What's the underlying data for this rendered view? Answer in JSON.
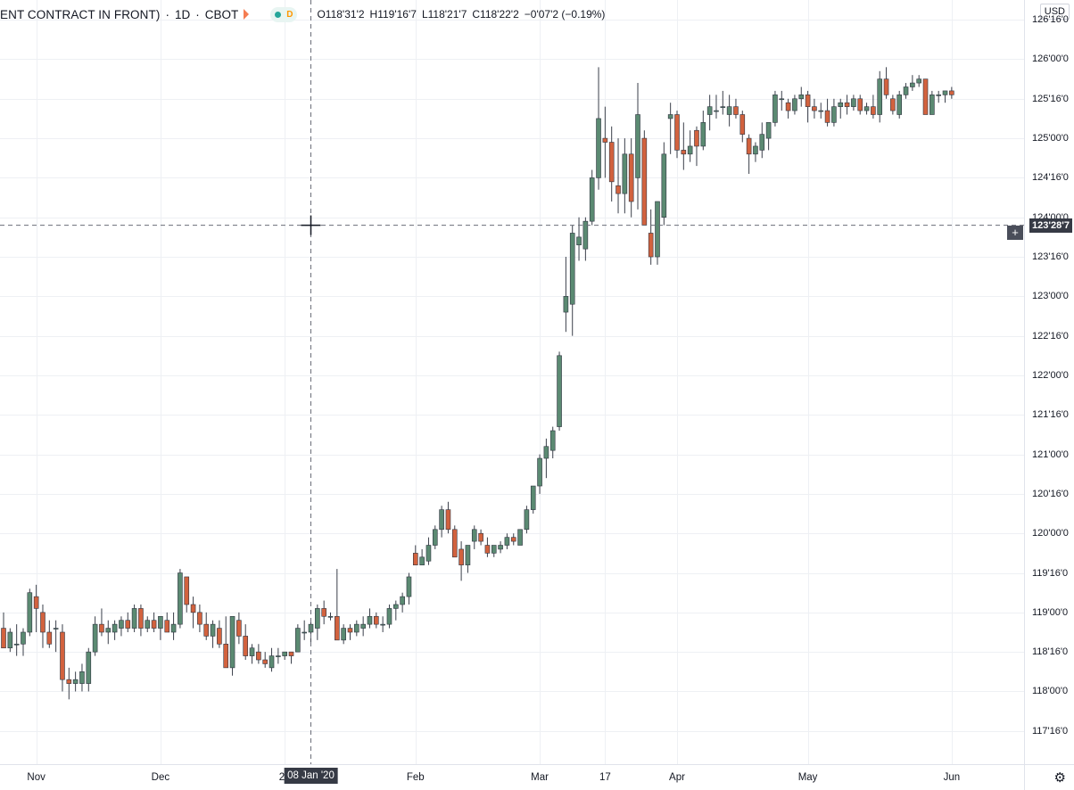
{
  "header": {
    "symbol": "ENT CONTRACT IN FRONT)",
    "interval": "1D",
    "exchange": "CBOT",
    "ohlc": {
      "open": "O118'31'2",
      "high": "H119'16'7",
      "low": "L118'21'7",
      "close": "C118'22'2",
      "change": "−0'07'2 (−0.19%)"
    },
    "currency": "USD",
    "status_letter": "D"
  },
  "colors": {
    "up": "#5b8a72",
    "down": "#d2623e",
    "grid": "#eef0f4",
    "axis_text": "#131722"
  },
  "icons": [
    "flag-icon",
    "live-dot-icon",
    "plus-icon",
    "gear-icon",
    "crosshair-icon"
  ],
  "crosshair": {
    "price_label": "123'28'7",
    "date_label": "08 Jan '20",
    "price": 123.9,
    "date_index": 47
  },
  "chart_data": {
    "type": "candlestick",
    "title": "",
    "y_ticks": [
      "126'16'0",
      "126'00'0",
      "125'16'0",
      "125'00'0",
      "124'16'0",
      "124'00'0",
      "123'16'0",
      "123'00'0",
      "122'16'0",
      "122'00'0",
      "121'16'0",
      "121'00'0",
      "120'16'0",
      "120'00'0",
      "119'16'0",
      "119'00'0",
      "118'16'0",
      "118'00'0",
      "117'16'0"
    ],
    "y_tick_values": [
      126.5,
      126.0,
      125.5,
      125.0,
      124.5,
      124.0,
      123.5,
      123.0,
      122.5,
      122.0,
      121.5,
      121.0,
      120.5,
      120.0,
      119.5,
      119.0,
      118.5,
      118.0,
      117.5
    ],
    "ylim": [
      117.08,
      126.75
    ],
    "x_labels": [
      {
        "label": "Nov",
        "index": 5
      },
      {
        "label": "Dec",
        "index": 24
      },
      {
        "label": "20",
        "index": 43
      },
      {
        "label": "Feb",
        "index": 63
      },
      {
        "label": "Mar",
        "index": 82
      },
      {
        "label": "17",
        "index": 92
      },
      {
        "label": "Apr",
        "index": 103
      },
      {
        "label": "May",
        "index": 123
      },
      {
        "label": "Jun",
        "index": 145
      }
    ],
    "ohlc": [
      [
        118.8,
        119.0,
        118.55,
        118.55
      ],
      [
        118.55,
        118.8,
        118.5,
        118.75
      ],
      [
        118.6,
        118.85,
        118.45,
        118.6
      ],
      [
        118.6,
        118.8,
        118.45,
        118.75
      ],
      [
        118.75,
        119.3,
        118.7,
        119.25
      ],
      [
        119.2,
        119.35,
        118.75,
        119.05
      ],
      [
        119.0,
        119.1,
        118.55,
        118.75
      ],
      [
        118.75,
        118.9,
        118.55,
        118.6
      ],
      [
        118.8,
        118.9,
        118.5,
        118.8
      ],
      [
        118.75,
        118.85,
        118.0,
        118.15
      ],
      [
        118.15,
        118.3,
        117.9,
        118.1
      ],
      [
        118.1,
        118.25,
        118.0,
        118.15
      ],
      [
        118.1,
        118.35,
        118.0,
        118.25
      ],
      [
        118.1,
        118.55,
        118.0,
        118.5
      ],
      [
        118.5,
        118.95,
        118.45,
        118.85
      ],
      [
        118.85,
        119.05,
        118.7,
        118.75
      ],
      [
        118.75,
        118.9,
        118.6,
        118.8
      ],
      [
        118.75,
        118.9,
        118.65,
        118.85
      ],
      [
        118.8,
        118.95,
        118.7,
        118.9
      ],
      [
        118.9,
        119.0,
        118.75,
        118.8
      ],
      [
        118.8,
        119.1,
        118.75,
        119.05
      ],
      [
        119.05,
        119.1,
        118.7,
        118.8
      ],
      [
        118.8,
        118.95,
        118.75,
        118.9
      ],
      [
        118.9,
        119.0,
        118.75,
        118.8
      ],
      [
        118.8,
        118.95,
        118.65,
        118.95
      ],
      [
        118.9,
        119.0,
        118.75,
        118.75
      ],
      [
        118.75,
        119.0,
        118.65,
        118.85
      ],
      [
        118.85,
        119.55,
        118.8,
        119.5
      ],
      [
        119.45,
        119.4,
        119.0,
        119.1
      ],
      [
        119.1,
        119.2,
        118.8,
        119.0
      ],
      [
        119.0,
        119.1,
        118.75,
        118.85
      ],
      [
        118.85,
        119.0,
        118.65,
        118.7
      ],
      [
        118.7,
        118.9,
        118.55,
        118.85
      ],
      [
        118.8,
        118.9,
        118.55,
        118.6
      ],
      [
        118.6,
        118.95,
        118.3,
        118.3
      ],
      [
        118.3,
        118.95,
        118.2,
        118.95
      ],
      [
        118.9,
        119.0,
        118.6,
        118.7
      ],
      [
        118.7,
        118.85,
        118.4,
        118.45
      ],
      [
        118.45,
        118.6,
        118.35,
        118.55
      ],
      [
        118.5,
        118.6,
        118.35,
        118.4
      ],
      [
        118.4,
        118.5,
        118.3,
        118.35
      ],
      [
        118.3,
        118.55,
        118.25,
        118.45
      ],
      [
        118.45,
        118.55,
        118.35,
        118.45
      ],
      [
        118.45,
        118.5,
        118.4,
        118.5
      ],
      [
        118.5,
        118.5,
        118.35,
        118.45
      ],
      [
        118.5,
        118.85,
        118.5,
        118.8
      ],
      [
        118.75,
        118.9,
        118.65,
        118.75
      ],
      [
        118.75,
        118.9,
        118.6,
        118.85
      ],
      [
        118.8,
        119.1,
        118.65,
        119.05
      ],
      [
        119.05,
        119.15,
        118.85,
        118.95
      ],
      [
        118.95,
        119.0,
        118.9,
        118.95
      ],
      [
        118.95,
        119.55,
        118.65,
        118.65
      ],
      [
        118.65,
        118.85,
        118.6,
        118.8
      ],
      [
        118.8,
        118.85,
        118.65,
        118.75
      ],
      [
        118.75,
        118.9,
        118.7,
        118.85
      ],
      [
        118.8,
        118.95,
        118.7,
        118.85
      ],
      [
        118.85,
        119.05,
        118.8,
        118.95
      ],
      [
        118.95,
        119.0,
        118.8,
        118.85
      ],
      [
        118.85,
        118.95,
        118.75,
        118.85
      ],
      [
        118.85,
        119.1,
        118.8,
        119.05
      ],
      [
        119.05,
        119.15,
        118.9,
        119.1
      ],
      [
        119.1,
        119.25,
        119.0,
        119.2
      ],
      [
        119.2,
        119.5,
        119.1,
        119.45
      ],
      [
        119.75,
        119.85,
        119.6,
        119.6
      ],
      [
        119.6,
        119.8,
        119.6,
        119.7
      ],
      [
        119.65,
        119.95,
        119.6,
        119.85
      ],
      [
        119.85,
        120.1,
        119.8,
        120.05
      ],
      [
        120.05,
        120.35,
        119.95,
        120.3
      ],
      [
        120.3,
        120.4,
        120.0,
        120.05
      ],
      [
        120.05,
        120.1,
        119.7,
        119.7
      ],
      [
        119.8,
        119.9,
        119.4,
        119.6
      ],
      [
        119.6,
        119.85,
        119.5,
        119.85
      ],
      [
        119.9,
        120.1,
        119.8,
        120.05
      ],
      [
        120.0,
        120.05,
        119.85,
        119.9
      ],
      [
        119.85,
        119.95,
        119.7,
        119.75
      ],
      [
        119.75,
        119.85,
        119.7,
        119.85
      ],
      [
        119.8,
        119.9,
        119.75,
        119.85
      ],
      [
        119.85,
        120.0,
        119.8,
        119.95
      ],
      [
        119.95,
        120.0,
        119.85,
        119.9
      ],
      [
        119.85,
        120.05,
        119.85,
        120.05
      ],
      [
        120.05,
        120.35,
        120.0,
        120.3
      ],
      [
        120.3,
        120.6,
        120.25,
        120.6
      ],
      [
        120.6,
        121.0,
        120.5,
        120.95
      ],
      [
        120.95,
        121.2,
        120.7,
        121.1
      ],
      [
        121.05,
        121.35,
        120.95,
        121.3
      ],
      [
        121.35,
        122.3,
        121.3,
        122.25
      ],
      [
        122.8,
        123.5,
        122.55,
        123.0
      ],
      [
        122.9,
        123.9,
        122.5,
        123.8
      ],
      [
        123.65,
        124.0,
        123.45,
        123.75
      ],
      [
        123.6,
        124.0,
        123.45,
        123.95
      ],
      [
        123.95,
        124.6,
        123.9,
        124.5
      ],
      [
        124.5,
        125.9,
        124.35,
        125.25
      ],
      [
        125.0,
        125.4,
        124.5,
        124.95
      ],
      [
        124.95,
        125.15,
        124.2,
        124.45
      ],
      [
        124.4,
        125.0,
        124.05,
        124.3
      ],
      [
        124.3,
        125.0,
        124.05,
        124.8
      ],
      [
        124.8,
        125.0,
        124.0,
        124.2
      ],
      [
        124.5,
        125.7,
        124.1,
        125.3
      ],
      [
        125.0,
        125.1,
        123.9,
        123.9
      ],
      [
        123.8,
        124.1,
        123.4,
        123.5
      ],
      [
        123.5,
        124.2,
        123.4,
        124.2
      ],
      [
        124.0,
        124.95,
        123.9,
        124.8
      ],
      [
        125.25,
        125.45,
        124.8,
        125.3
      ],
      [
        125.3,
        125.35,
        124.75,
        124.85
      ],
      [
        124.85,
        125.2,
        124.6,
        124.8
      ],
      [
        124.8,
        125.1,
        124.7,
        124.9
      ],
      [
        125.1,
        125.15,
        124.65,
        124.9
      ],
      [
        124.9,
        125.35,
        124.85,
        125.2
      ],
      [
        125.3,
        125.55,
        125.1,
        125.4
      ],
      [
        125.35,
        125.55,
        125.25,
        125.35
      ],
      [
        125.4,
        125.6,
        125.3,
        125.4
      ],
      [
        125.3,
        125.55,
        125.15,
        125.4
      ],
      [
        125.4,
        125.5,
        125.25,
        125.3
      ],
      [
        125.3,
        125.35,
        124.95,
        125.05
      ],
      [
        125.0,
        125.05,
        124.55,
        124.8
      ],
      [
        124.8,
        124.95,
        124.7,
        124.9
      ],
      [
        124.85,
        125.2,
        124.75,
        125.05
      ],
      [
        125.0,
        125.15,
        124.85,
        125.2
      ],
      [
        125.2,
        125.6,
        125.15,
        125.55
      ],
      [
        125.5,
        125.6,
        125.35,
        125.5
      ],
      [
        125.45,
        125.5,
        125.25,
        125.35
      ],
      [
        125.35,
        125.55,
        125.3,
        125.5
      ],
      [
        125.5,
        125.65,
        125.4,
        125.55
      ],
      [
        125.55,
        125.6,
        125.2,
        125.4
      ],
      [
        125.4,
        125.5,
        125.25,
        125.35
      ],
      [
        125.35,
        125.45,
        125.25,
        125.35
      ],
      [
        125.35,
        125.5,
        125.15,
        125.2
      ],
      [
        125.2,
        125.5,
        125.15,
        125.4
      ],
      [
        125.4,
        125.5,
        125.25,
        125.45
      ],
      [
        125.45,
        125.55,
        125.3,
        125.4
      ],
      [
        125.4,
        125.55,
        125.35,
        125.5
      ],
      [
        125.5,
        125.55,
        125.3,
        125.35
      ],
      [
        125.35,
        125.45,
        125.3,
        125.4
      ],
      [
        125.4,
        125.55,
        125.25,
        125.3
      ],
      [
        125.3,
        125.85,
        125.2,
        125.75
      ],
      [
        125.75,
        125.9,
        125.5,
        125.55
      ],
      [
        125.5,
        125.55,
        125.3,
        125.35
      ],
      [
        125.3,
        125.6,
        125.25,
        125.55
      ],
      [
        125.55,
        125.7,
        125.5,
        125.65
      ],
      [
        125.65,
        125.8,
        125.6,
        125.7
      ],
      [
        125.7,
        125.8,
        125.65,
        125.75
      ],
      [
        125.75,
        125.75,
        125.3,
        125.3
      ],
      [
        125.3,
        125.6,
        125.3,
        125.55
      ],
      [
        125.55,
        125.6,
        125.45,
        125.55
      ],
      [
        125.55,
        125.6,
        125.45,
        125.6
      ],
      [
        125.6,
        125.65,
        125.5,
        125.55
      ]
    ]
  }
}
